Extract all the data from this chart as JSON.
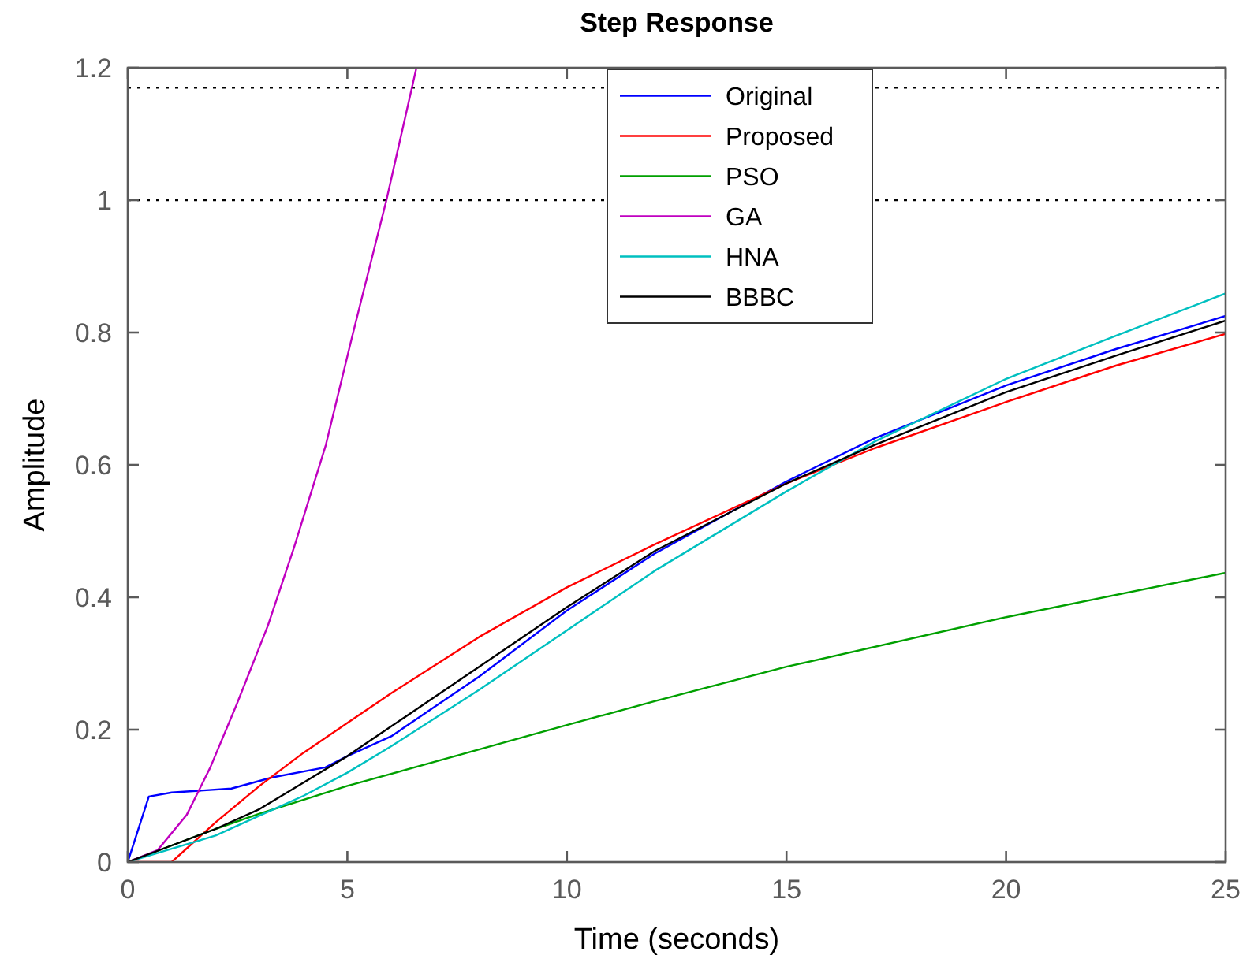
{
  "chart_data": {
    "type": "line",
    "title": "Step Response",
    "xlabel": "Time (seconds)",
    "ylabel": "Amplitude",
    "xlim": [
      0,
      25
    ],
    "ylim": [
      0,
      1.2
    ],
    "xticks": [
      0,
      5,
      10,
      15,
      20,
      25
    ],
    "yticks": [
      0,
      0.2,
      0.4,
      0.6,
      0.8,
      1,
      1.2
    ],
    "grid": false,
    "legend": "top",
    "line_style": "solid",
    "marker": "none",
    "ref_lines": [
      {
        "axis": "y",
        "value": 1,
        "color": "#000000",
        "line_style": "dotted"
      },
      {
        "axis": "y",
        "value": 1.17,
        "color": "#000000",
        "line_style": "dotted"
      }
    ],
    "series": [
      {
        "name": "Original",
        "color": "#0000ff",
        "x": [
          0,
          0.48,
          1,
          2.36,
          3.3,
          4.5,
          5,
          6,
          7,
          8,
          9,
          10,
          12,
          15,
          17,
          20,
          22.5,
          25
        ],
        "values": [
          0,
          0.099,
          0.105,
          0.111,
          0.128,
          0.143,
          0.16,
          0.19,
          0.235,
          0.28,
          0.33,
          0.38,
          0.466,
          0.575,
          0.64,
          0.72,
          0.775,
          0.825
        ]
      },
      {
        "name": "Proposed",
        "color": "#ff0000",
        "x": [
          0,
          1,
          2,
          3,
          4,
          5,
          6,
          8,
          10,
          12,
          15,
          17,
          20,
          22.5,
          25
        ],
        "values": [
          0,
          0,
          0.06,
          0.115,
          0.165,
          0.21,
          0.255,
          0.34,
          0.415,
          0.48,
          0.572,
          0.625,
          0.695,
          0.75,
          0.798
        ]
      },
      {
        "name": "PSO",
        "color": "#00a000",
        "x": [
          0,
          1,
          2,
          3,
          5,
          8,
          10,
          12,
          15,
          20,
          25
        ],
        "values": [
          0,
          0.025,
          0.05,
          0.073,
          0.115,
          0.17,
          0.207,
          0.243,
          0.295,
          0.37,
          0.437
        ]
      },
      {
        "name": "GA",
        "color": "#c000c0",
        "x": [
          0,
          0.68,
          1.34,
          1.88,
          2.48,
          3.19,
          3.79,
          4.51,
          5.11,
          5.89,
          6.57
        ],
        "values": [
          0,
          0.018,
          0.071,
          0.143,
          0.238,
          0.357,
          0.476,
          0.63,
          0.794,
          1.0,
          1.199
        ]
      },
      {
        "name": "HNA",
        "color": "#00c0c0",
        "x": [
          0,
          1,
          2,
          3,
          4,
          5,
          6,
          8,
          10,
          12,
          15,
          17,
          20,
          22.5,
          25
        ],
        "values": [
          0,
          0.02,
          0.04,
          0.07,
          0.1,
          0.135,
          0.175,
          0.26,
          0.35,
          0.44,
          0.56,
          0.635,
          0.73,
          0.795,
          0.859
        ]
      },
      {
        "name": "BBBC",
        "color": "#000000",
        "x": [
          0,
          1,
          2,
          3,
          4,
          5,
          6,
          8,
          10,
          12,
          15,
          17,
          20,
          22.5,
          25
        ],
        "values": [
          0,
          0.025,
          0.05,
          0.08,
          0.12,
          0.16,
          0.205,
          0.295,
          0.385,
          0.47,
          0.572,
          0.63,
          0.71,
          0.765,
          0.818
        ]
      }
    ]
  }
}
